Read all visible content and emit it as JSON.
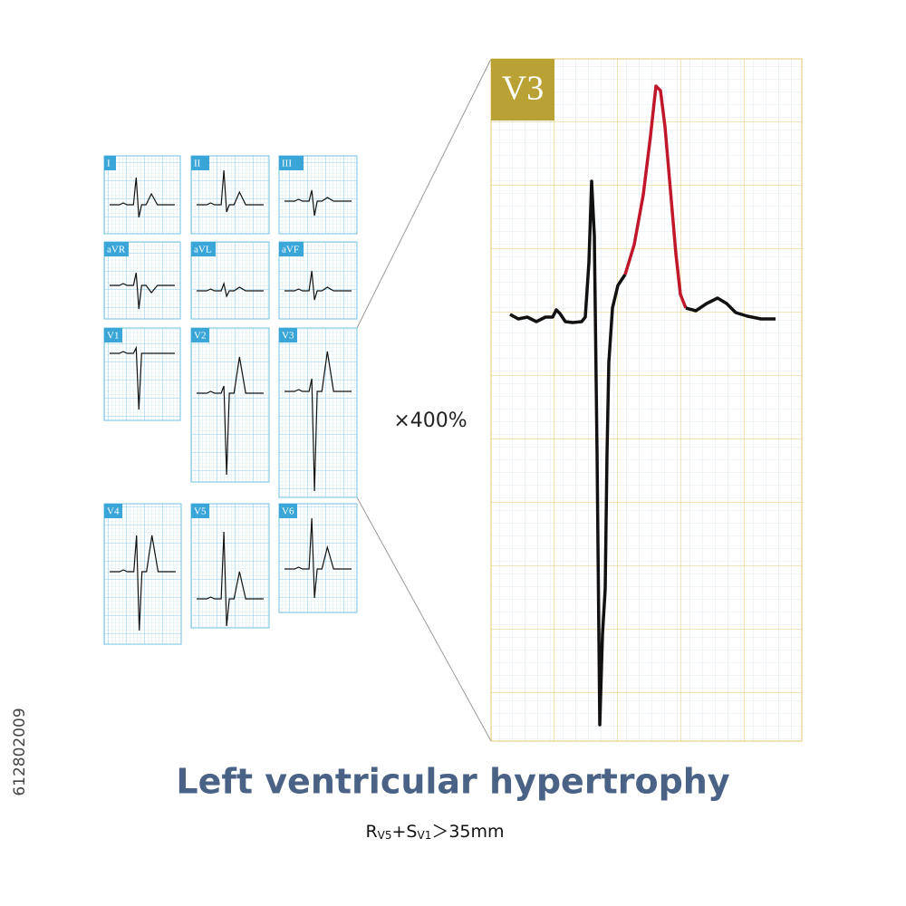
{
  "leads": [
    {
      "label": "I"
    },
    {
      "label": "II"
    },
    {
      "label": "III"
    },
    {
      "label": "aVR"
    },
    {
      "label": "aVL"
    },
    {
      "label": "aVF"
    },
    {
      "label": "V1"
    },
    {
      "label": "V2"
    },
    {
      "label": "V3"
    },
    {
      "label": "V4"
    },
    {
      "label": "V5"
    },
    {
      "label": "V6"
    }
  ],
  "zoom": {
    "lead": "V3",
    "magnification": "×400%"
  },
  "title": "Left ventricular hypertrophy",
  "formula": {
    "r": "R",
    "r_sub": "V5",
    "s": "+S",
    "s_sub": "V1",
    "rest": "＞35mm"
  },
  "watermark_id": "612802009"
}
